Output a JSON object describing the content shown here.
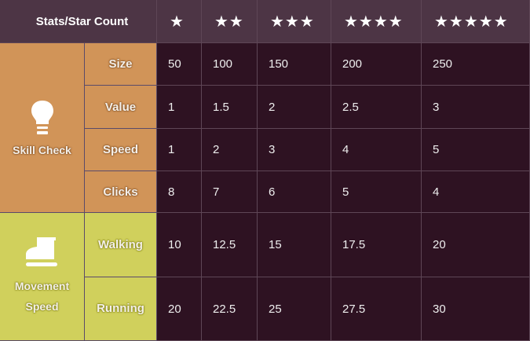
{
  "header": {
    "title": "Stats/Star Count",
    "stars": [
      "★",
      "★★",
      "★★★",
      "★★★★",
      "★★★★★"
    ]
  },
  "groups": [
    {
      "label": "Skill Check",
      "icon": "lightbulb-icon",
      "color": "#d19458",
      "rows": [
        {
          "stat": "Size",
          "values": [
            "50",
            "100",
            "150",
            "200",
            "250"
          ]
        },
        {
          "stat": "Value",
          "values": [
            "1",
            "1.5",
            "2",
            "2.5",
            "3"
          ]
        },
        {
          "stat": "Speed",
          "values": [
            "1",
            "2",
            "3",
            "4",
            "5"
          ]
        },
        {
          "stat": "Clicks",
          "values": [
            "8",
            "7",
            "6",
            "5",
            "4"
          ]
        }
      ]
    },
    {
      "label": "Movement Speed",
      "icon": "boot-icon",
      "color": "#d0d05c",
      "rows": [
        {
          "stat": "Walking",
          "values": [
            "10",
            "12.5",
            "15",
            "17.5",
            "20"
          ]
        },
        {
          "stat": "Running",
          "values": [
            "20",
            "22.5",
            "25",
            "27.5",
            "30"
          ]
        }
      ]
    }
  ]
}
